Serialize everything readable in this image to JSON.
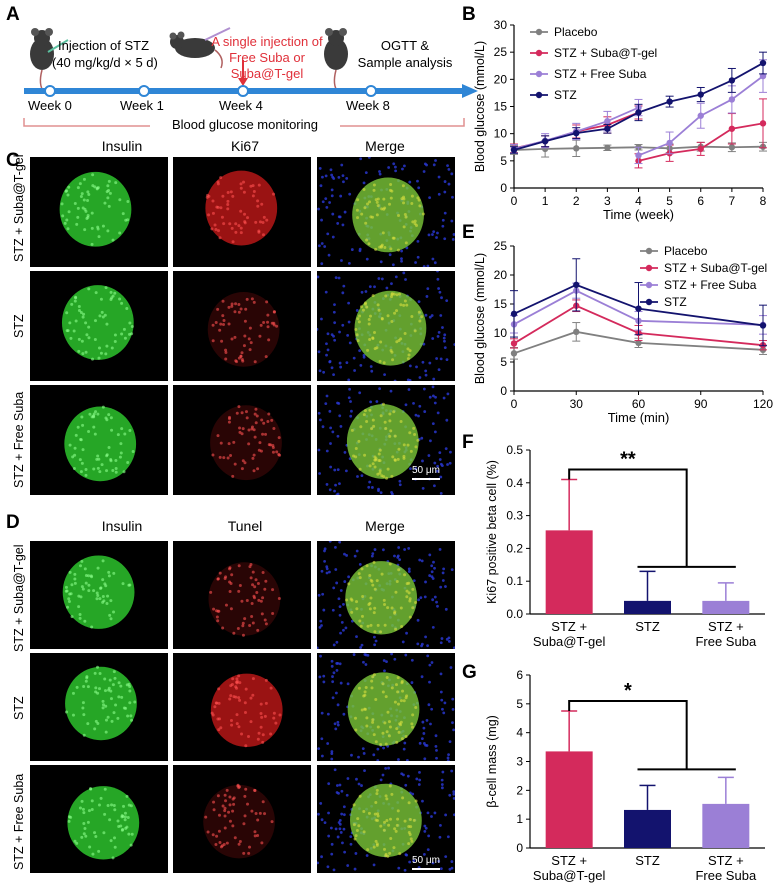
{
  "panel_labels": {
    "a": "A",
    "b": "B",
    "c": "C",
    "d": "D",
    "e": "E",
    "f": "F",
    "g": "G"
  },
  "timeline": {
    "step1": "Injection of STZ",
    "step1_dose": "(40 mg/kg/d × 5 d)",
    "step2_line1": "A single injection of",
    "step2_line2": "Free Suba or",
    "step2_line3": "Suba@T-gel",
    "step3_line1": "OGTT &",
    "step3_line2": "Sample analysis",
    "weeks": [
      "Week 0",
      "Week 1",
      "Week 4",
      "Week 8"
    ],
    "monitoring": "Blood glucose monitoring"
  },
  "panel_c": {
    "columns": [
      "Insulin",
      "Ki67",
      "Merge"
    ],
    "rows": [
      "STZ + Suba@T-gel",
      "STZ",
      "STZ +  Free Suba"
    ],
    "scale": "50 μm"
  },
  "panel_d": {
    "columns": [
      "Insulin",
      "Tunel",
      "Merge"
    ],
    "rows": [
      "STZ + Suba@T-gel",
      "STZ",
      "STZ +  Free Suba"
    ],
    "scale": "50 μm"
  },
  "colors": {
    "placebo": "#808080",
    "suba_gel": "#d42a5c",
    "free_suba": "#9b7fd6",
    "stz": "#13136e",
    "timeline": "#2f86d6",
    "monitor": "#e09090",
    "red_arrow": "#e0303a"
  },
  "chart_data": [
    {
      "id": "B",
      "type": "line",
      "xlabel": "Time (week)",
      "ylabel": "Blood glucose (mmol/L)",
      "xlim": [
        0,
        8
      ],
      "ylim": [
        0,
        30
      ],
      "xticks": [
        0,
        1,
        2,
        3,
        4,
        5,
        6,
        7,
        8
      ],
      "yticks": [
        0,
        5,
        10,
        15,
        20,
        25,
        30
      ],
      "legend": [
        "Placebo",
        "STZ + Suba@T-gel",
        "STZ + Free Suba",
        "STZ"
      ],
      "series": [
        {
          "name": "Placebo",
          "x": [
            0,
            1,
            2,
            3,
            4,
            5,
            6,
            7,
            8
          ],
          "y": [
            7.0,
            7.2,
            7.3,
            7.4,
            7.5,
            7.3,
            7.6,
            7.5,
            7.6
          ],
          "err": [
            0.8,
            1.5,
            1.5,
            0.5,
            0.5,
            0.8,
            0.8,
            0.8,
            0.8
          ]
        },
        {
          "name": "STZ + Suba@T-gel",
          "x": [
            0,
            1,
            2,
            3,
            4
          ],
          "y": [
            7.3,
            8.6,
            10.4,
            11.6,
            13.9
          ],
          "err": [
            0.8,
            1.0,
            1.2,
            1.5,
            1.2
          ]
        },
        {
          "name": "STZ + Suba@T-gel",
          "x": [
            4,
            5,
            6,
            7,
            8
          ],
          "y": [
            5.0,
            6.4,
            7.2,
            10.9,
            11.9
          ],
          "err": [
            1.3,
            1.5,
            1.2,
            2.8,
            4.5
          ]
        },
        {
          "name": "STZ + Free Suba",
          "x": [
            0,
            1,
            2,
            3,
            4
          ],
          "y": [
            7.2,
            8.7,
            10.4,
            12.3,
            14.8
          ],
          "err": [
            0.8,
            1.3,
            1.5,
            1.8,
            1.5
          ]
        },
        {
          "name": "STZ + Free Suba",
          "x": [
            4,
            5,
            6,
            7,
            8
          ],
          "y": [
            6.0,
            8.3,
            13.3,
            16.3,
            20.6
          ],
          "err": [
            1.5,
            2.0,
            2.3,
            2.5,
            3.0
          ]
        },
        {
          "name": "STZ",
          "x": [
            0,
            1,
            2,
            3,
            4,
            5,
            6,
            7,
            8
          ],
          "y": [
            7.0,
            8.6,
            10.1,
            10.9,
            13.9,
            15.9,
            17.2,
            19.8,
            23.0
          ],
          "err": [
            0.6,
            1.0,
            1.0,
            0.8,
            1.5,
            1.0,
            1.3,
            2.2,
            2.0
          ]
        }
      ]
    },
    {
      "id": "E",
      "type": "line",
      "xlabel": "Time (min)",
      "ylabel": "Blood glucose (mmol/L)",
      "xlim": [
        0,
        120
      ],
      "ylim": [
        0,
        25
      ],
      "xticks": [
        0,
        30,
        60,
        90,
        120
      ],
      "yticks": [
        0,
        5,
        10,
        15,
        20,
        25
      ],
      "legend": [
        "Placebo",
        "STZ + Suba@T-gel",
        "STZ + Free Suba",
        "STZ"
      ],
      "series": [
        {
          "name": "Placebo",
          "x": [
            0,
            30,
            60,
            120
          ],
          "y": [
            6.5,
            10.2,
            8.3,
            7.1
          ],
          "err": [
            1.0,
            1.6,
            0.8,
            0.8
          ]
        },
        {
          "name": "STZ + Suba@T-gel",
          "x": [
            0,
            30,
            60,
            120
          ],
          "y": [
            8.2,
            14.7,
            10.0,
            7.9
          ],
          "err": [
            0.8,
            1.0,
            1.3,
            0.8
          ]
        },
        {
          "name": "STZ + Free Suba",
          "x": [
            0,
            30,
            60,
            120
          ],
          "y": [
            11.5,
            17.3,
            12.1,
            11.4
          ],
          "err": [
            1.5,
            1.3,
            1.6,
            1.6
          ]
        },
        {
          "name": "STZ",
          "x": [
            0,
            30,
            60,
            120
          ],
          "y": [
            13.3,
            18.3,
            14.2,
            11.3
          ],
          "err": [
            4.0,
            4.5,
            4.5,
            3.5
          ]
        }
      ]
    },
    {
      "id": "F",
      "type": "bar",
      "ylabel": "Ki67 positive beta cell (%)",
      "ylim": [
        0,
        0.5
      ],
      "yticks": [
        0,
        0.1,
        0.2,
        0.3,
        0.4,
        0.5
      ],
      "categories": [
        "STZ +\nSuba@T-gel",
        "STZ",
        "STZ +\nFree Suba"
      ],
      "values": [
        0.255,
        0.04,
        0.04
      ],
      "err": [
        0.155,
        0.09,
        0.055
      ],
      "significance": "**"
    },
    {
      "id": "G",
      "type": "bar",
      "ylabel": "β-cell mass (mg)",
      "ylim": [
        0,
        6
      ],
      "yticks": [
        0,
        1,
        2,
        3,
        4,
        5,
        6
      ],
      "categories": [
        "STZ +\nSuba@T-gel",
        "STZ",
        "STZ +\nFree Suba"
      ],
      "values": [
        3.35,
        1.32,
        1.53
      ],
      "err": [
        1.4,
        0.85,
        0.92
      ],
      "significance": "*"
    }
  ]
}
